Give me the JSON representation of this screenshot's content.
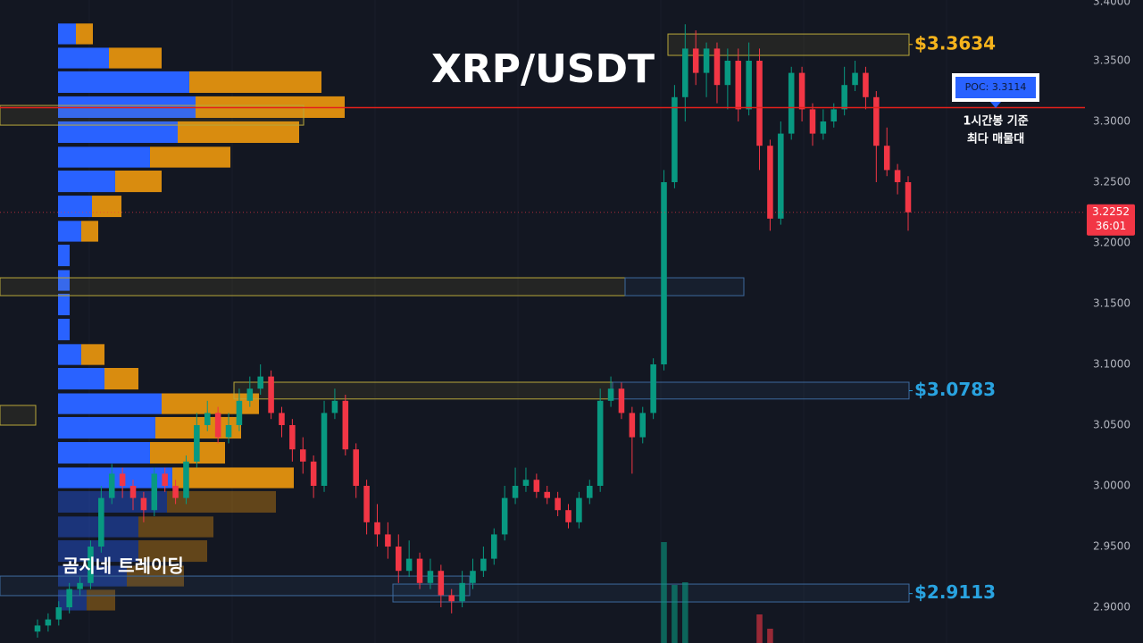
{
  "chart_data": {
    "type": "candlestick",
    "title": "XRP/USDT",
    "watermark": "곰지네 트레이딩",
    "ylim": [
      2.8706,
      3.4
    ],
    "yticks": [
      {
        "value": 2.9,
        "label": "2.9000"
      },
      {
        "value": 2.95,
        "label": "2.9500"
      },
      {
        "value": 3.0,
        "label": "3.0000"
      },
      {
        "value": 3.05,
        "label": "3.0500"
      },
      {
        "value": 3.1,
        "label": "3.1000"
      },
      {
        "value": 3.15,
        "label": "3.1500"
      },
      {
        "value": 3.2,
        "label": "3.2000"
      },
      {
        "value": 3.25,
        "label": "3.2500"
      },
      {
        "value": 3.3,
        "label": "3.3000"
      },
      {
        "value": 3.35,
        "label": "3.3500"
      },
      {
        "value": 3.4,
        "label": "3.4000"
      }
    ],
    "grid": true,
    "up_color": "#089981",
    "down_color": "#f23645",
    "candles": [
      [
        2.88,
        2.89,
        2.875,
        2.885
      ],
      [
        2.885,
        2.895,
        2.88,
        2.89
      ],
      [
        2.89,
        2.905,
        2.885,
        2.9
      ],
      [
        2.9,
        2.92,
        2.895,
        2.915
      ],
      [
        2.915,
        2.925,
        2.91,
        2.92
      ],
      [
        2.92,
        2.955,
        2.915,
        2.95
      ],
      [
        2.95,
        3.0,
        2.945,
        2.99
      ],
      [
        2.99,
        3.018,
        2.985,
        3.01
      ],
      [
        3.01,
        3.015,
        2.99,
        3.0
      ],
      [
        3.0,
        3.005,
        2.98,
        2.99
      ],
      [
        2.99,
        2.995,
        2.97,
        2.98
      ],
      [
        2.98,
        3.015,
        2.975,
        3.01
      ],
      [
        3.01,
        3.015,
        2.995,
        3.0
      ],
      [
        3.0,
        3.005,
        2.985,
        2.99
      ],
      [
        2.99,
        3.025,
        2.985,
        3.02
      ],
      [
        3.02,
        3.06,
        3.015,
        3.05
      ],
      [
        3.05,
        3.07,
        3.045,
        3.06
      ],
      [
        3.06,
        3.065,
        3.035,
        3.04
      ],
      [
        3.04,
        3.06,
        3.035,
        3.05
      ],
      [
        3.05,
        3.08,
        3.045,
        3.07
      ],
      [
        3.07,
        3.09,
        3.065,
        3.08
      ],
      [
        3.08,
        3.1,
        3.075,
        3.09
      ],
      [
        3.09,
        3.095,
        3.055,
        3.06
      ],
      [
        3.06,
        3.065,
        3.04,
        3.05
      ],
      [
        3.05,
        3.055,
        3.02,
        3.03
      ],
      [
        3.03,
        3.04,
        3.01,
        3.02
      ],
      [
        3.02,
        3.025,
        2.99,
        3.0
      ],
      [
        3.0,
        3.07,
        2.995,
        3.06
      ],
      [
        3.06,
        3.08,
        3.055,
        3.07
      ],
      [
        3.07,
        3.075,
        3.025,
        3.03
      ],
      [
        3.03,
        3.035,
        2.99,
        3.0
      ],
      [
        3.0,
        3.005,
        2.96,
        2.97
      ],
      [
        2.97,
        2.985,
        2.95,
        2.96
      ],
      [
        2.96,
        2.97,
        2.94,
        2.95
      ],
      [
        2.95,
        2.96,
        2.92,
        2.93
      ],
      [
        2.93,
        2.955,
        2.925,
        2.94
      ],
      [
        2.94,
        2.945,
        2.915,
        2.92
      ],
      [
        2.92,
        2.94,
        2.915,
        2.93
      ],
      [
        2.93,
        2.935,
        2.9,
        2.91
      ],
      [
        2.91,
        2.915,
        2.895,
        2.905
      ],
      [
        2.905,
        2.93,
        2.9,
        2.92
      ],
      [
        2.92,
        2.94,
        2.915,
        2.93
      ],
      [
        2.93,
        2.95,
        2.925,
        2.94
      ],
      [
        2.94,
        2.965,
        2.935,
        2.96
      ],
      [
        2.96,
        3.0,
        2.955,
        2.99
      ],
      [
        2.99,
        3.015,
        2.985,
        3.0
      ],
      [
        3.0,
        3.015,
        2.995,
        3.005
      ],
      [
        3.005,
        3.01,
        2.99,
        2.995
      ],
      [
        2.995,
        3.0,
        2.985,
        2.99
      ],
      [
        2.99,
        2.995,
        2.975,
        2.98
      ],
      [
        2.98,
        2.985,
        2.965,
        2.97
      ],
      [
        2.97,
        2.995,
        2.965,
        2.99
      ],
      [
        2.99,
        3.005,
        2.985,
        3.0
      ],
      [
        3.0,
        3.08,
        2.995,
        3.07
      ],
      [
        3.07,
        3.09,
        3.065,
        3.08
      ],
      [
        3.08,
        3.085,
        3.055,
        3.06
      ],
      [
        3.06,
        3.065,
        3.01,
        3.04
      ],
      [
        3.04,
        3.065,
        3.035,
        3.06
      ],
      [
        3.06,
        3.105,
        3.055,
        3.1
      ],
      [
        3.1,
        3.26,
        3.095,
        3.25
      ],
      [
        3.25,
        3.33,
        3.245,
        3.32
      ],
      [
        3.32,
        3.38,
        3.3,
        3.36
      ],
      [
        3.36,
        3.375,
        3.33,
        3.34
      ],
      [
        3.34,
        3.365,
        3.32,
        3.36
      ],
      [
        3.36,
        3.365,
        3.315,
        3.33
      ],
      [
        3.33,
        3.36,
        3.31,
        3.35
      ],
      [
        3.35,
        3.36,
        3.3,
        3.31
      ],
      [
        3.31,
        3.365,
        3.305,
        3.35
      ],
      [
        3.35,
        3.36,
        3.26,
        3.28
      ],
      [
        3.28,
        3.285,
        3.21,
        3.22
      ],
      [
        3.22,
        3.3,
        3.215,
        3.29
      ],
      [
        3.29,
        3.345,
        3.285,
        3.34
      ],
      [
        3.34,
        3.345,
        3.3,
        3.31
      ],
      [
        3.31,
        3.315,
        3.28,
        3.29
      ],
      [
        3.29,
        3.31,
        3.285,
        3.3
      ],
      [
        3.3,
        3.315,
        3.295,
        3.31
      ],
      [
        3.31,
        3.345,
        3.305,
        3.33
      ],
      [
        3.33,
        3.35,
        3.325,
        3.34
      ],
      [
        3.34,
        3.345,
        3.31,
        3.32
      ],
      [
        3.32,
        3.325,
        3.25,
        3.28
      ],
      [
        3.28,
        3.295,
        3.255,
        3.26
      ],
      [
        3.26,
        3.265,
        3.24,
        3.25
      ],
      [
        3.25,
        3.255,
        3.21,
        3.2252
      ]
    ],
    "volume_ylim": [
      0,
      720
    ],
    "volumes": [
      null,
      null,
      null,
      null,
      null,
      null,
      null,
      null,
      null,
      null,
      null,
      null,
      null,
      null,
      null,
      null,
      null,
      null,
      null,
      null,
      null,
      null,
      null,
      null,
      null,
      null,
      null,
      null,
      null,
      null,
      null,
      null,
      null,
      null,
      null,
      null,
      null,
      null,
      null,
      null,
      null,
      null,
      null,
      null,
      null,
      null,
      null,
      null,
      null,
      null,
      null,
      null,
      null,
      null,
      null,
      null,
      null,
      null,
      null,
      113,
      65,
      68,
      null,
      null,
      null,
      null,
      null,
      null,
      32,
      16,
      null,
      null,
      null,
      null,
      null,
      null,
      null,
      null,
      null,
      null,
      null,
      null,
      null
    ],
    "volume_profile": {
      "buy_color": "#2962ff",
      "sell_color": "#d98c0f",
      "xlim": [
        0,
        1215
      ],
      "value_area": [
        2.995,
        3.4
      ],
      "prices": [
        3.3721,
        3.3522,
        3.3324,
        3.3118,
        3.2912,
        3.2706,
        3.2507,
        3.2301,
        3.2096,
        3.1897,
        3.1691,
        3.1493,
        3.1287,
        3.1081,
        3.0882,
        3.0676,
        3.0478,
        3.0272,
        3.0066,
        2.9868,
        2.9662,
        2.9463,
        2.9257,
        2.9059
      ],
      "buy": [
        20,
        57,
        147,
        154,
        134,
        103,
        64,
        38,
        26,
        13,
        13,
        13,
        13,
        26,
        52,
        116,
        109,
        103,
        128,
        122,
        90,
        90,
        77,
        32
      ],
      "sell": [
        19,
        59,
        148,
        167,
        136,
        90,
        52,
        33,
        19,
        0,
        0,
        0,
        0,
        26,
        38,
        109,
        96,
        84,
        136,
        122,
        84,
        77,
        64,
        32
      ]
    },
    "zones": [
      {
        "top": 3.372,
        "bottom": 3.3544,
        "color": "#b8a73a"
      },
      {
        "top": 3.3132,
        "bottom": 3.297,
        "color": "#b8a73a"
      },
      {
        "top": 3.1713,
        "bottom": 3.1566,
        "color": "#b8a73a"
      },
      {
        "top": 3.1713,
        "bottom": 3.1566,
        "color": "#3d6a9e"
      },
      {
        "top": 3.0662,
        "bottom": 3.05,
        "color": "#b8a73a"
      },
      {
        "top": 3.0853,
        "bottom": 3.0715,
        "color": "#b8a73a"
      },
      {
        "top": 3.0853,
        "bottom": 3.0715,
        "color": "#3d6a9e"
      },
      {
        "top": 2.9257,
        "bottom": 2.9096,
        "color": "#3d6a9e"
      },
      {
        "top": 2.9191,
        "bottom": 2.9044,
        "color": "#3d6a9e"
      }
    ],
    "levels": [
      {
        "label": "$3.3634",
        "value": 3.3634,
        "color": "#f5b31c"
      },
      {
        "label": "$3.0783",
        "value": 3.0783,
        "color": "#29a3e0"
      },
      {
        "label": "$2.9113",
        "value": 2.9113,
        "color": "#29a3e0"
      }
    ],
    "poc": {
      "value": 3.3114,
      "label": "POC: 3.3114",
      "color": "#e3201b",
      "note": [
        "1시간봉 기준",
        "최다 매물대"
      ]
    },
    "last_price": {
      "value": 3.2252,
      "label": "3.2252",
      "countdown": "36:01"
    }
  }
}
